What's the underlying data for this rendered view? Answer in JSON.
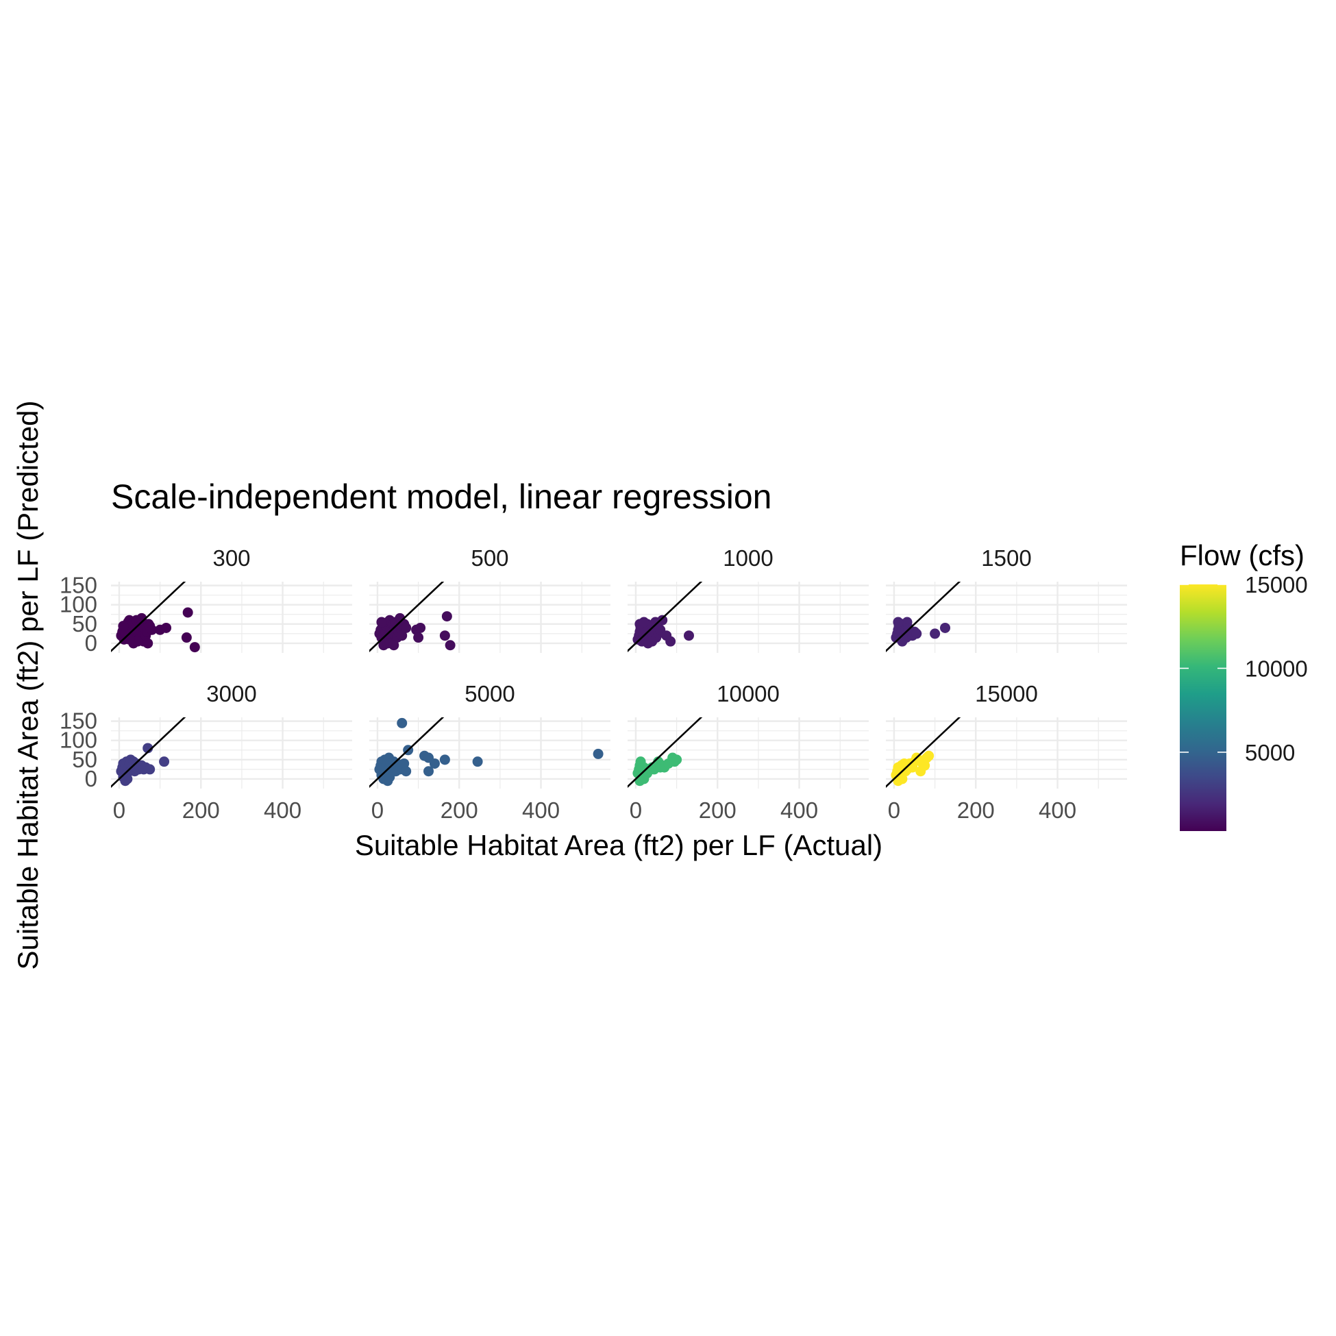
{
  "chart_data": {
    "type": "scatter",
    "title": "Scale-independent model, linear regression",
    "xlabel": "Suitable Habitat Area (ft2) per LF (Actual)",
    "ylabel": "Suitable Habitat Area (ft2) per LF (Predicted)",
    "xlim": [
      -20,
      570
    ],
    "ylim": [
      -25,
      160
    ],
    "xticks": [
      0,
      200,
      400
    ],
    "yticks": [
      0,
      50,
      100,
      150
    ],
    "reference_line": "y = x",
    "grid": true,
    "facets_ncol": 4,
    "legend": {
      "title": "Flow (cfs)",
      "type": "colorbar",
      "position": "right",
      "range": [
        300,
        15000
      ],
      "breaks": [
        5000,
        10000,
        15000
      ],
      "colors": [
        "#440154",
        "#482878",
        "#3e4a89",
        "#31688e",
        "#26828e",
        "#1f9e89",
        "#35b779",
        "#6ece58",
        "#b5de2b",
        "#fde725"
      ]
    },
    "series": [
      {
        "label": "300",
        "color": "#440154",
        "points": [
          [
            5,
            20
          ],
          [
            8,
            30
          ],
          [
            10,
            35
          ],
          [
            12,
            10
          ],
          [
            15,
            45
          ],
          [
            18,
            40
          ],
          [
            20,
            25
          ],
          [
            22,
            55
          ],
          [
            25,
            60
          ],
          [
            28,
            15
          ],
          [
            30,
            35
          ],
          [
            32,
            50
          ],
          [
            35,
            20
          ],
          [
            38,
            5
          ],
          [
            40,
            40
          ],
          [
            42,
            60
          ],
          [
            45,
            30
          ],
          [
            48,
            10
          ],
          [
            50,
            55
          ],
          [
            52,
            45
          ],
          [
            55,
            65
          ],
          [
            58,
            25
          ],
          [
            60,
            5
          ],
          [
            62,
            40
          ],
          [
            65,
            20
          ],
          [
            68,
            30
          ],
          [
            70,
            0
          ],
          [
            72,
            50
          ],
          [
            75,
            45
          ],
          [
            80,
            35
          ],
          [
            35,
            0
          ],
          [
            45,
            5
          ],
          [
            25,
            10
          ],
          [
            15,
            25
          ],
          [
            10,
            45
          ],
          [
            100,
            35
          ],
          [
            115,
            40
          ],
          [
            165,
            15
          ],
          [
            168,
            80
          ],
          [
            185,
            -10
          ]
        ]
      },
      {
        "label": "500",
        "color": "#450d5c",
        "points": [
          [
            5,
            25
          ],
          [
            8,
            35
          ],
          [
            10,
            15
          ],
          [
            12,
            40
          ],
          [
            15,
            50
          ],
          [
            18,
            5
          ],
          [
            20,
            30
          ],
          [
            22,
            45
          ],
          [
            25,
            55
          ],
          [
            28,
            20
          ],
          [
            30,
            60
          ],
          [
            32,
            35
          ],
          [
            35,
            10
          ],
          [
            38,
            50
          ],
          [
            40,
            25
          ],
          [
            42,
            40
          ],
          [
            45,
            55
          ],
          [
            48,
            15
          ],
          [
            50,
            45
          ],
          [
            52,
            30
          ],
          [
            55,
            60
          ],
          [
            58,
            35
          ],
          [
            60,
            20
          ],
          [
            65,
            50
          ],
          [
            70,
            40
          ],
          [
            15,
            -5
          ],
          [
            25,
            0
          ],
          [
            40,
            -5
          ],
          [
            10,
            55
          ],
          [
            55,
            65
          ],
          [
            95,
            35
          ],
          [
            100,
            15
          ],
          [
            105,
            40
          ],
          [
            165,
            20
          ],
          [
            170,
            70
          ],
          [
            178,
            -5
          ]
        ]
      },
      {
        "label": "1000",
        "color": "#481a6b",
        "points": [
          [
            5,
            10
          ],
          [
            8,
            20
          ],
          [
            10,
            30
          ],
          [
            12,
            40
          ],
          [
            15,
            5
          ],
          [
            18,
            25
          ],
          [
            20,
            45
          ],
          [
            22,
            35
          ],
          [
            25,
            15
          ],
          [
            28,
            50
          ],
          [
            30,
            25
          ],
          [
            32,
            40
          ],
          [
            35,
            10
          ],
          [
            38,
            30
          ],
          [
            40,
            45
          ],
          [
            42,
            20
          ],
          [
            45,
            35
          ],
          [
            48,
            55
          ],
          [
            50,
            15
          ],
          [
            55,
            25
          ],
          [
            60,
            35
          ],
          [
            10,
            50
          ],
          [
            20,
            55
          ],
          [
            30,
            0
          ],
          [
            40,
            5
          ],
          [
            65,
            60
          ],
          [
            75,
            20
          ],
          [
            85,
            5
          ],
          [
            130,
            20
          ]
        ]
      },
      {
        "label": "1500",
        "color": "#482575",
        "points": [
          [
            5,
            15
          ],
          [
            8,
            25
          ],
          [
            10,
            35
          ],
          [
            12,
            45
          ],
          [
            15,
            20
          ],
          [
            18,
            30
          ],
          [
            20,
            50
          ],
          [
            22,
            10
          ],
          [
            25,
            25
          ],
          [
            28,
            35
          ],
          [
            30,
            15
          ],
          [
            32,
            55
          ],
          [
            35,
            40
          ],
          [
            38,
            20
          ],
          [
            40,
            30
          ],
          [
            45,
            20
          ],
          [
            48,
            25
          ],
          [
            50,
            30
          ],
          [
            55,
            25
          ],
          [
            10,
            55
          ],
          [
            20,
            5
          ],
          [
            100,
            25
          ],
          [
            125,
            40
          ]
        ]
      },
      {
        "label": "3000",
        "color": "#433e85",
        "points": [
          [
            5,
            20
          ],
          [
            8,
            30
          ],
          [
            10,
            40
          ],
          [
            12,
            25
          ],
          [
            15,
            35
          ],
          [
            18,
            45
          ],
          [
            20,
            15
          ],
          [
            22,
            30
          ],
          [
            25,
            40
          ],
          [
            28,
            50
          ],
          [
            30,
            25
          ],
          [
            32,
            35
          ],
          [
            35,
            45
          ],
          [
            38,
            20
          ],
          [
            40,
            30
          ],
          [
            42,
            40
          ],
          [
            45,
            35
          ],
          [
            48,
            25
          ],
          [
            50,
            30
          ],
          [
            55,
            35
          ],
          [
            60,
            25
          ],
          [
            65,
            30
          ],
          [
            10,
            5
          ],
          [
            15,
            -5
          ],
          [
            20,
            0
          ],
          [
            70,
            80
          ],
          [
            75,
            25
          ],
          [
            110,
            45
          ]
        ]
      },
      {
        "label": "5000",
        "color": "#35608d",
        "points": [
          [
            5,
            25
          ],
          [
            8,
            35
          ],
          [
            10,
            45
          ],
          [
            12,
            30
          ],
          [
            15,
            40
          ],
          [
            18,
            50
          ],
          [
            20,
            20
          ],
          [
            22,
            35
          ],
          [
            25,
            45
          ],
          [
            28,
            55
          ],
          [
            30,
            30
          ],
          [
            32,
            40
          ],
          [
            35,
            25
          ],
          [
            38,
            35
          ],
          [
            40,
            45
          ],
          [
            42,
            30
          ],
          [
            45,
            20
          ],
          [
            48,
            40
          ],
          [
            50,
            35
          ],
          [
            55,
            25
          ],
          [
            60,
            30
          ],
          [
            65,
            40
          ],
          [
            70,
            20
          ],
          [
            10,
            10
          ],
          [
            15,
            0
          ],
          [
            25,
            -5
          ],
          [
            30,
            5
          ],
          [
            60,
            145
          ],
          [
            75,
            75
          ],
          [
            115,
            60
          ],
          [
            125,
            55
          ],
          [
            140,
            40
          ],
          [
            125,
            20
          ],
          [
            165,
            50
          ],
          [
            245,
            45
          ],
          [
            540,
            65
          ]
        ]
      },
      {
        "label": "10000",
        "color": "#3dbb74",
        "points": [
          [
            5,
            15
          ],
          [
            8,
            25
          ],
          [
            10,
            35
          ],
          [
            12,
            45
          ],
          [
            15,
            5
          ],
          [
            18,
            20
          ],
          [
            20,
            30
          ],
          [
            22,
            10
          ],
          [
            25,
            25
          ],
          [
            28,
            15
          ],
          [
            30,
            20
          ],
          [
            35,
            25
          ],
          [
            40,
            30
          ],
          [
            45,
            25
          ],
          [
            50,
            35
          ],
          [
            55,
            45
          ],
          [
            60,
            30
          ],
          [
            65,
            35
          ],
          [
            70,
            30
          ],
          [
            80,
            40
          ],
          [
            90,
            55
          ],
          [
            95,
            45
          ],
          [
            100,
            50
          ],
          [
            10,
            -5
          ],
          [
            20,
            0
          ]
        ]
      },
      {
        "label": "15000",
        "color": "#fde725",
        "points": [
          [
            5,
            10
          ],
          [
            8,
            20
          ],
          [
            10,
            30
          ],
          [
            12,
            5
          ],
          [
            15,
            25
          ],
          [
            18,
            35
          ],
          [
            20,
            15
          ],
          [
            22,
            30
          ],
          [
            25,
            40
          ],
          [
            28,
            20
          ],
          [
            30,
            35
          ],
          [
            32,
            25
          ],
          [
            35,
            30
          ],
          [
            38,
            40
          ],
          [
            40,
            35
          ],
          [
            45,
            30
          ],
          [
            50,
            45
          ],
          [
            55,
            55
          ],
          [
            60,
            50
          ],
          [
            65,
            20
          ],
          [
            70,
            40
          ],
          [
            75,
            35
          ],
          [
            80,
            55
          ],
          [
            85,
            60
          ],
          [
            10,
            -5
          ],
          [
            20,
            0
          ]
        ]
      }
    ]
  }
}
